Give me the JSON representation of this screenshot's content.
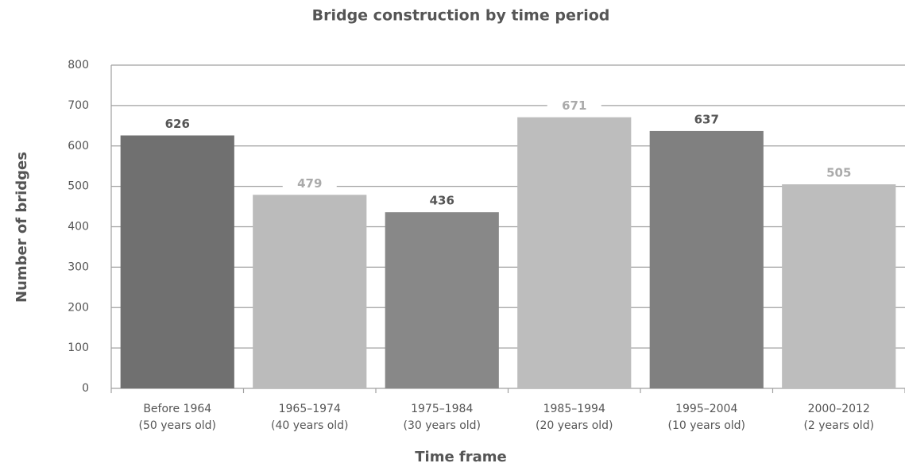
{
  "chart_data": {
    "type": "bar",
    "title": "Bridge construction by time period",
    "x_label": "Time frame",
    "y_label": "Number of bridges",
    "categories": [
      "Before 1964",
      "1965–1974",
      "1975–1984",
      "1985–1994",
      "1995–2004",
      "2000–2012"
    ],
    "sublabels": [
      "(50 years old)",
      "(40 years old)",
      "(30 years old)",
      "(20 years old)",
      "(10 years old)",
      "(2 years old)"
    ],
    "values": [
      626,
      479,
      436,
      671,
      637,
      505
    ],
    "colors": [
      "#707070",
      "#bbbbbb",
      "#888888",
      "#bdbdbd",
      "#808080",
      "#bdbdbd"
    ],
    "label_colors": [
      "#555555",
      "#aaaaaa",
      "#555555",
      "#aaaaaa",
      "#555555",
      "#aaaaaa"
    ],
    "ylim": [
      0,
      800
    ],
    "yticks": [
      0,
      100,
      200,
      300,
      400,
      500,
      600,
      700,
      800
    ],
    "grid": true
  }
}
